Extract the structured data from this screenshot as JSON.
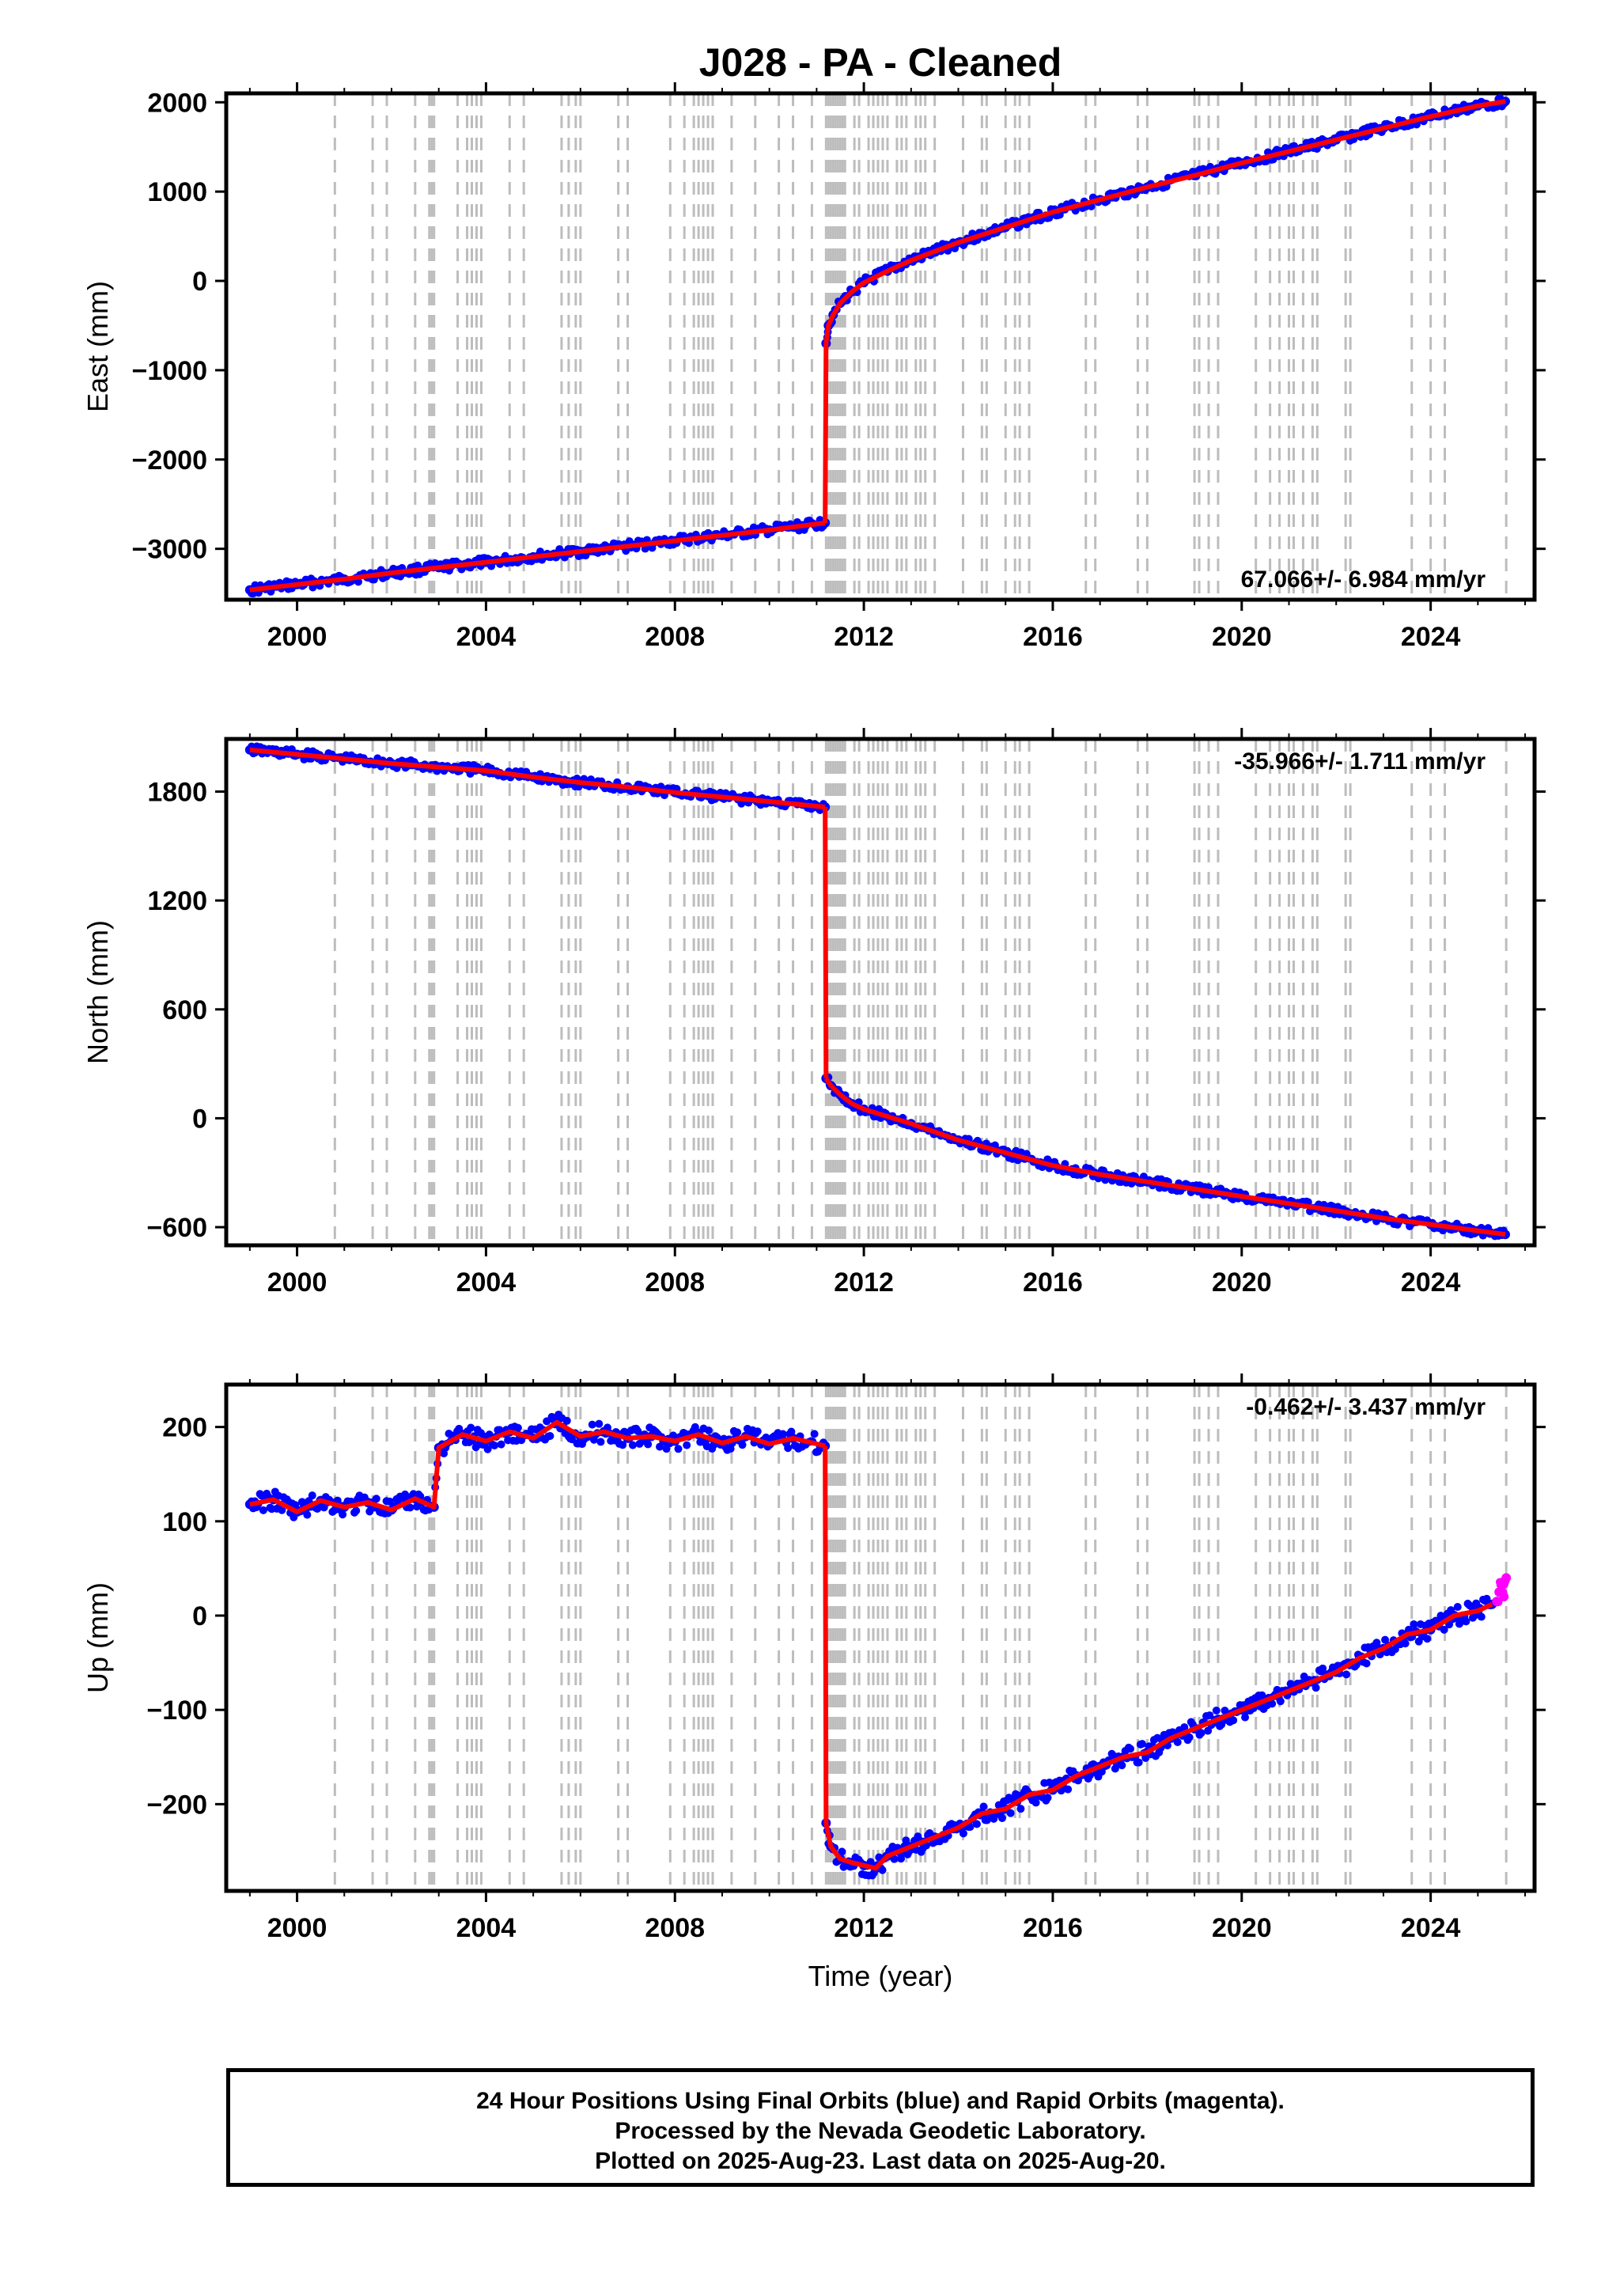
{
  "title": "J028  - PA - Cleaned",
  "colors": {
    "final_orbits": "#0000ff",
    "rapid_orbits": "#ff00ff",
    "model": "#ff0000",
    "event_lines": "#bdbdbd",
    "frame": "#000000"
  },
  "xlabel": "Time (year)",
  "event_lines": [
    2000.8,
    2001.6,
    2001.9,
    2002.5,
    2002.8,
    2002.85,
    2002.9,
    2003.4,
    2003.6,
    2003.7,
    2003.8,
    2003.9,
    2004.5,
    2004.8,
    2005.6,
    2005.75,
    2005.9,
    2006.0,
    2006.8,
    2007.0,
    2007.9,
    2008.2,
    2008.4,
    2008.5,
    2008.6,
    2008.7,
    2008.8,
    2009.2,
    2009.7,
    2010.2,
    2010.5,
    2010.9,
    2011.2,
    2011.25,
    2011.3,
    2011.35,
    2011.4,
    2011.45,
    2011.5,
    2011.55,
    2011.6,
    2011.8,
    2011.9,
    2012.1,
    2012.2,
    2012.3,
    2012.4,
    2012.5,
    2012.7,
    2012.8,
    2012.9,
    2013.1,
    2013.2,
    2013.3,
    2013.5,
    2014.1,
    2014.5,
    2014.6,
    2015.0,
    2015.2,
    2015.3,
    2015.5,
    2016.7,
    2016.9,
    2017.8,
    2018.0,
    2019.0,
    2019.1,
    2019.3,
    2019.5,
    2020.3,
    2020.6,
    2020.8,
    2021.0,
    2021.1,
    2021.3,
    2021.5,
    2021.6,
    2022.2,
    2022.3,
    2023.6,
    2024.0,
    2024.3,
    2025.6
  ],
  "x_ticks": [
    "2000",
    "2004",
    "2008",
    "2012",
    "2016",
    "2020",
    "2024"
  ],
  "chart_data": [
    {
      "type": "scatter",
      "ylabel": "East (mm)",
      "xlim": [
        1998.5,
        2026.2
      ],
      "ylim": [
        -3570,
        2100
      ],
      "y_ticks": [
        -3000,
        -2000,
        -1000,
        0,
        1000,
        2000
      ],
      "y_tick_labels": [
        "−3000",
        "−2000",
        "−1000",
        "0",
        "1000",
        "2000"
      ],
      "rate_label": "67.066+/- 6.984 mm/yr",
      "series": [
        {
          "name": "Final Orbits",
          "x": [
            1999.0,
            2000.0,
            2001.0,
            2002.0,
            2003.0,
            2004.0,
            2005.0,
            2006.0,
            2007.0,
            2008.0,
            2009.0,
            2010.0,
            2011.18
          ],
          "y": [
            -3460,
            -3400,
            -3340,
            -3270,
            -3210,
            -3150,
            -3090,
            -3030,
            -2970,
            -2910,
            -2850,
            -2790,
            -2710
          ]
        },
        {
          "name": "Final Orbits",
          "x": [
            2011.2,
            2011.25,
            2011.35,
            2011.5,
            2011.75,
            2012.0,
            2012.5,
            2013.0,
            2014.0,
            2015.0,
            2016.0,
            2017.0,
            2018.0,
            2019.0,
            2020.0,
            2021.0,
            2022.0,
            2023.0,
            2024.0,
            2025.0,
            2025.58
          ],
          "y": [
            -700,
            -500,
            -380,
            -250,
            -120,
            -20,
            110,
            230,
            430,
            600,
            770,
            910,
            1050,
            1180,
            1320,
            1450,
            1580,
            1710,
            1840,
            1960,
            2010
          ]
        }
      ]
    },
    {
      "type": "scatter",
      "ylabel": "North (mm)",
      "xlim": [
        1998.5,
        2026.2
      ],
      "ylim": [
        -700,
        2090
      ],
      "y_ticks": [
        -600,
        0,
        600,
        1200,
        1800
      ],
      "y_tick_labels": [
        "−600",
        "0",
        "600",
        "1200",
        "1800"
      ],
      "rate_label": "-35.966+/- 1.711 mm/yr",
      "series": [
        {
          "name": "Final Orbits",
          "x": [
            1999.0,
            2000.0,
            2001.0,
            2002.0,
            2003.0,
            2004.0,
            2005.0,
            2006.0,
            2007.0,
            2008.0,
            2009.0,
            2010.0,
            2011.18
          ],
          "y": [
            2030,
            2005,
            1980,
            1955,
            1935,
            1915,
            1880,
            1850,
            1825,
            1795,
            1770,
            1745,
            1715
          ]
        },
        {
          "name": "Final Orbits",
          "x": [
            2011.2,
            2011.3,
            2011.5,
            2011.75,
            2012.0,
            2012.5,
            2013.0,
            2014.0,
            2015.0,
            2016.0,
            2017.0,
            2018.0,
            2019.0,
            2020.0,
            2021.0,
            2022.0,
            2023.0,
            2024.0,
            2025.0,
            2025.58
          ],
          "y": [
            220,
            180,
            130,
            80,
            50,
            10,
            -30,
            -120,
            -190,
            -260,
            -310,
            -350,
            -390,
            -430,
            -470,
            -510,
            -550,
            -585,
            -620,
            -640
          ]
        }
      ]
    },
    {
      "type": "scatter",
      "ylabel": "Up (mm)",
      "xlim": [
        1998.5,
        2026.2
      ],
      "ylim": [
        -292,
        245
      ],
      "y_ticks": [
        -200,
        -100,
        0,
        100,
        200
      ],
      "y_tick_labels": [
        "−200",
        "−100",
        "0",
        "100",
        "200"
      ],
      "rate_label": "-0.462+/- 3.437 mm/yr",
      "series": [
        {
          "name": "Final Orbits",
          "x": [
            1999.0,
            1999.5,
            2000.0,
            2000.5,
            2001.0,
            2001.5,
            2002.0,
            2002.5,
            2002.9,
            2003.0,
            2003.5,
            2004.0,
            2004.5,
            2005.0,
            2005.5,
            2006.0,
            2006.5,
            2007.0,
            2007.5,
            2008.0,
            2008.5,
            2009.0,
            2009.5,
            2010.0,
            2010.5,
            2011.18
          ],
          "y": [
            118,
            123,
            110,
            122,
            115,
            120,
            112,
            124,
            115,
            178,
            192,
            185,
            195,
            188,
            205,
            190,
            195,
            188,
            190,
            185,
            192,
            183,
            190,
            182,
            188,
            180
          ]
        },
        {
          "name": "Final Orbits",
          "x": [
            2011.2,
            2011.3,
            2011.5,
            2011.75,
            2012.0,
            2012.25,
            2012.5,
            2012.75,
            2013.0,
            2013.5,
            2014.0,
            2014.5,
            2015.0,
            2015.5,
            2016.0,
            2016.5,
            2017.0,
            2017.5,
            2018.0,
            2018.5,
            2019.0,
            2019.5,
            2020.0,
            2020.5,
            2021.0,
            2021.5,
            2022.0,
            2022.5,
            2023.0,
            2023.5,
            2024.0,
            2024.5,
            2025.0,
            2025.3
          ],
          "y": [
            -220,
            -245,
            -258,
            -262,
            -265,
            -268,
            -255,
            -250,
            -245,
            -235,
            -225,
            -210,
            -205,
            -190,
            -185,
            -170,
            -160,
            -150,
            -145,
            -130,
            -120,
            -110,
            -100,
            -90,
            -80,
            -70,
            -60,
            -45,
            -35,
            -20,
            -15,
            0,
            5,
            12
          ]
        },
        {
          "name": "Rapid Orbits",
          "x": [
            2025.4,
            2025.45,
            2025.5,
            2025.55,
            2025.6
          ],
          "y": [
            15,
            25,
            35,
            20,
            40
          ]
        }
      ]
    }
  ],
  "footer": {
    "line1": "24 Hour Positions Using Final Orbits (blue) and Rapid Orbits (magenta).",
    "line2": "Processed by the Nevada Geodetic Laboratory.",
    "line3": "Plotted on 2025-Aug-23. Last data on 2025-Aug-20."
  }
}
